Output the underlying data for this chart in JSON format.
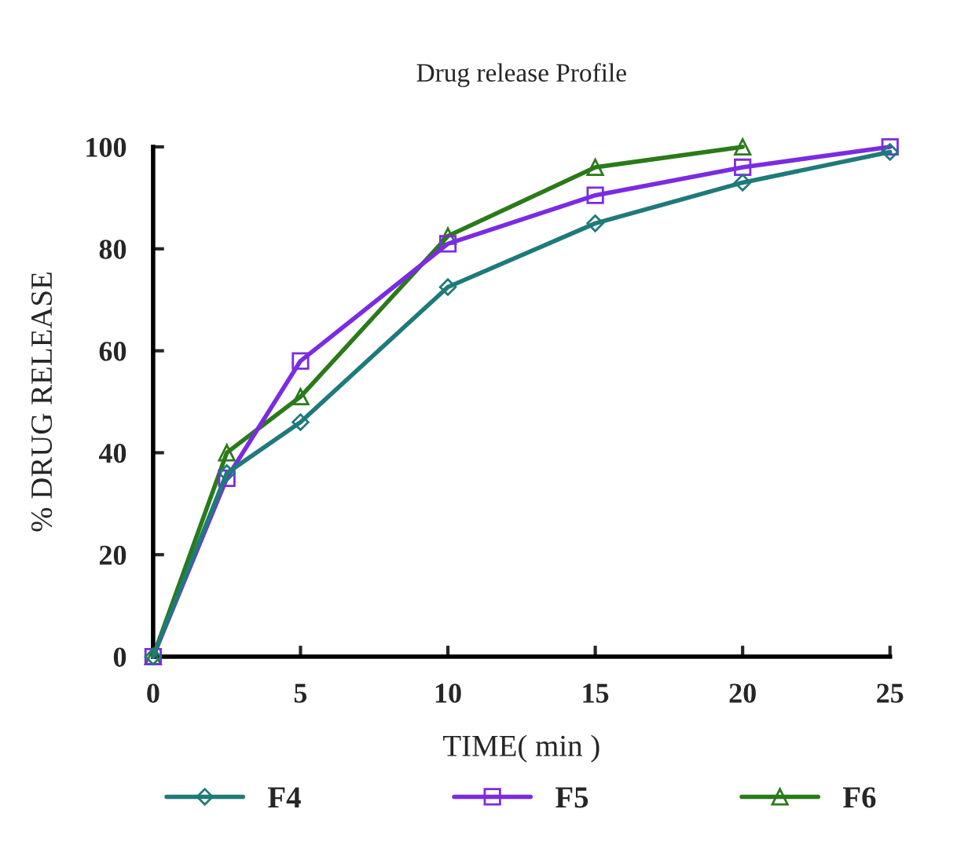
{
  "chart_data": {
    "type": "line",
    "title": "Drug release Profile",
    "xlabel": "TIME( min )",
    "ylabel": "% DRUG RELEASE",
    "x": [
      0,
      2.5,
      5,
      10,
      15,
      20,
      25
    ],
    "series": [
      {
        "name": "F4",
        "color": "#1f7a7a",
        "marker": "diamond",
        "values": [
          0,
          36,
          46,
          72.5,
          85,
          93,
          99
        ]
      },
      {
        "name": "F5",
        "color": "#7b2be2",
        "marker": "square",
        "values": [
          0,
          35,
          58,
          81,
          90.5,
          96,
          100
        ]
      },
      {
        "name": "F6",
        "color": "#2a7a1a",
        "marker": "triangle",
        "x": [
          0,
          2.5,
          5,
          10,
          15,
          20
        ],
        "values": [
          0,
          40,
          51,
          82.5,
          96,
          100
        ]
      }
    ],
    "xlim": [
      0,
      25
    ],
    "xticks": [
      0,
      5,
      10,
      15,
      20,
      25
    ],
    "ylim": [
      0,
      100
    ],
    "yticks": [
      0,
      20,
      40,
      60,
      80,
      100
    ],
    "grid": false,
    "legend": "bottom"
  }
}
